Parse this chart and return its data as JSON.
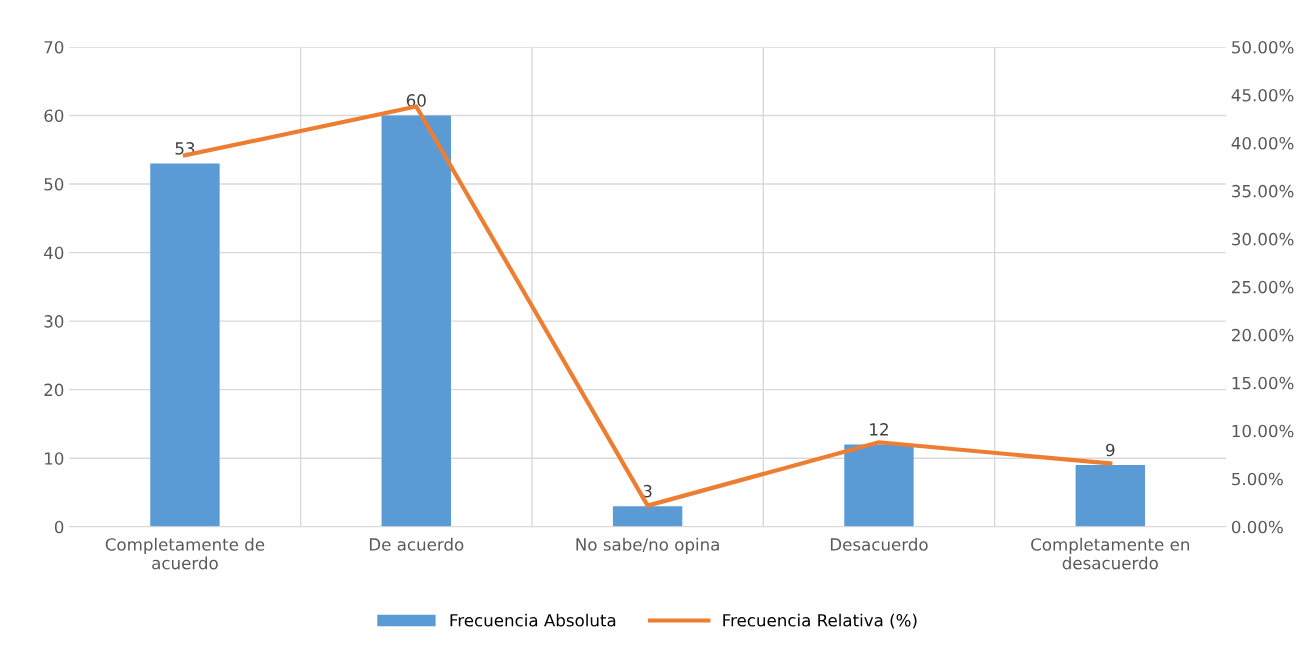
{
  "chart_data": {
    "type": "bar",
    "categories": [
      "Completamente de\nacuerdo",
      "De acuerdo",
      "No sabe/no opina",
      "Desacuerdo",
      "Completamente en\ndesacuerdo"
    ],
    "series": [
      {
        "name": "Frecuencia Absoluta",
        "color": "#5b9bd5",
        "values": [
          53,
          60,
          3,
          12,
          9
        ],
        "value_labels": [
          "53",
          "60",
          "3",
          "12",
          "9"
        ]
      },
      {
        "name": "Frecuencia Relativa (%)",
        "type": "line",
        "axis": "y2",
        "color": "#ed7d31",
        "values": [
          38.7,
          43.8,
          2.2,
          8.8,
          6.6
        ]
      }
    ],
    "ylim": [
      0,
      70
    ],
    "yticks": [
      0,
      10,
      20,
      30,
      40,
      50,
      60,
      70
    ],
    "y2lim": [
      0,
      50
    ],
    "y2ticks": [
      {
        "value": 0,
        "label": "0.00%"
      },
      {
        "value": 5,
        "label": "5.00%"
      },
      {
        "value": 10,
        "label": "10.00%"
      },
      {
        "value": 15,
        "label": "15.00%"
      },
      {
        "value": 20,
        "label": "20.00%"
      },
      {
        "value": 25,
        "label": "25.00%"
      },
      {
        "value": 30,
        "label": "30.00%"
      },
      {
        "value": 35,
        "label": "35.00%"
      },
      {
        "value": 40,
        "label": "40.00%"
      },
      {
        "value": 45,
        "label": "45.00%"
      },
      {
        "value": 50,
        "label": "50.00%"
      }
    ],
    "grid": true,
    "legend": "bottom",
    "marker": "none",
    "line_style": "solid"
  }
}
